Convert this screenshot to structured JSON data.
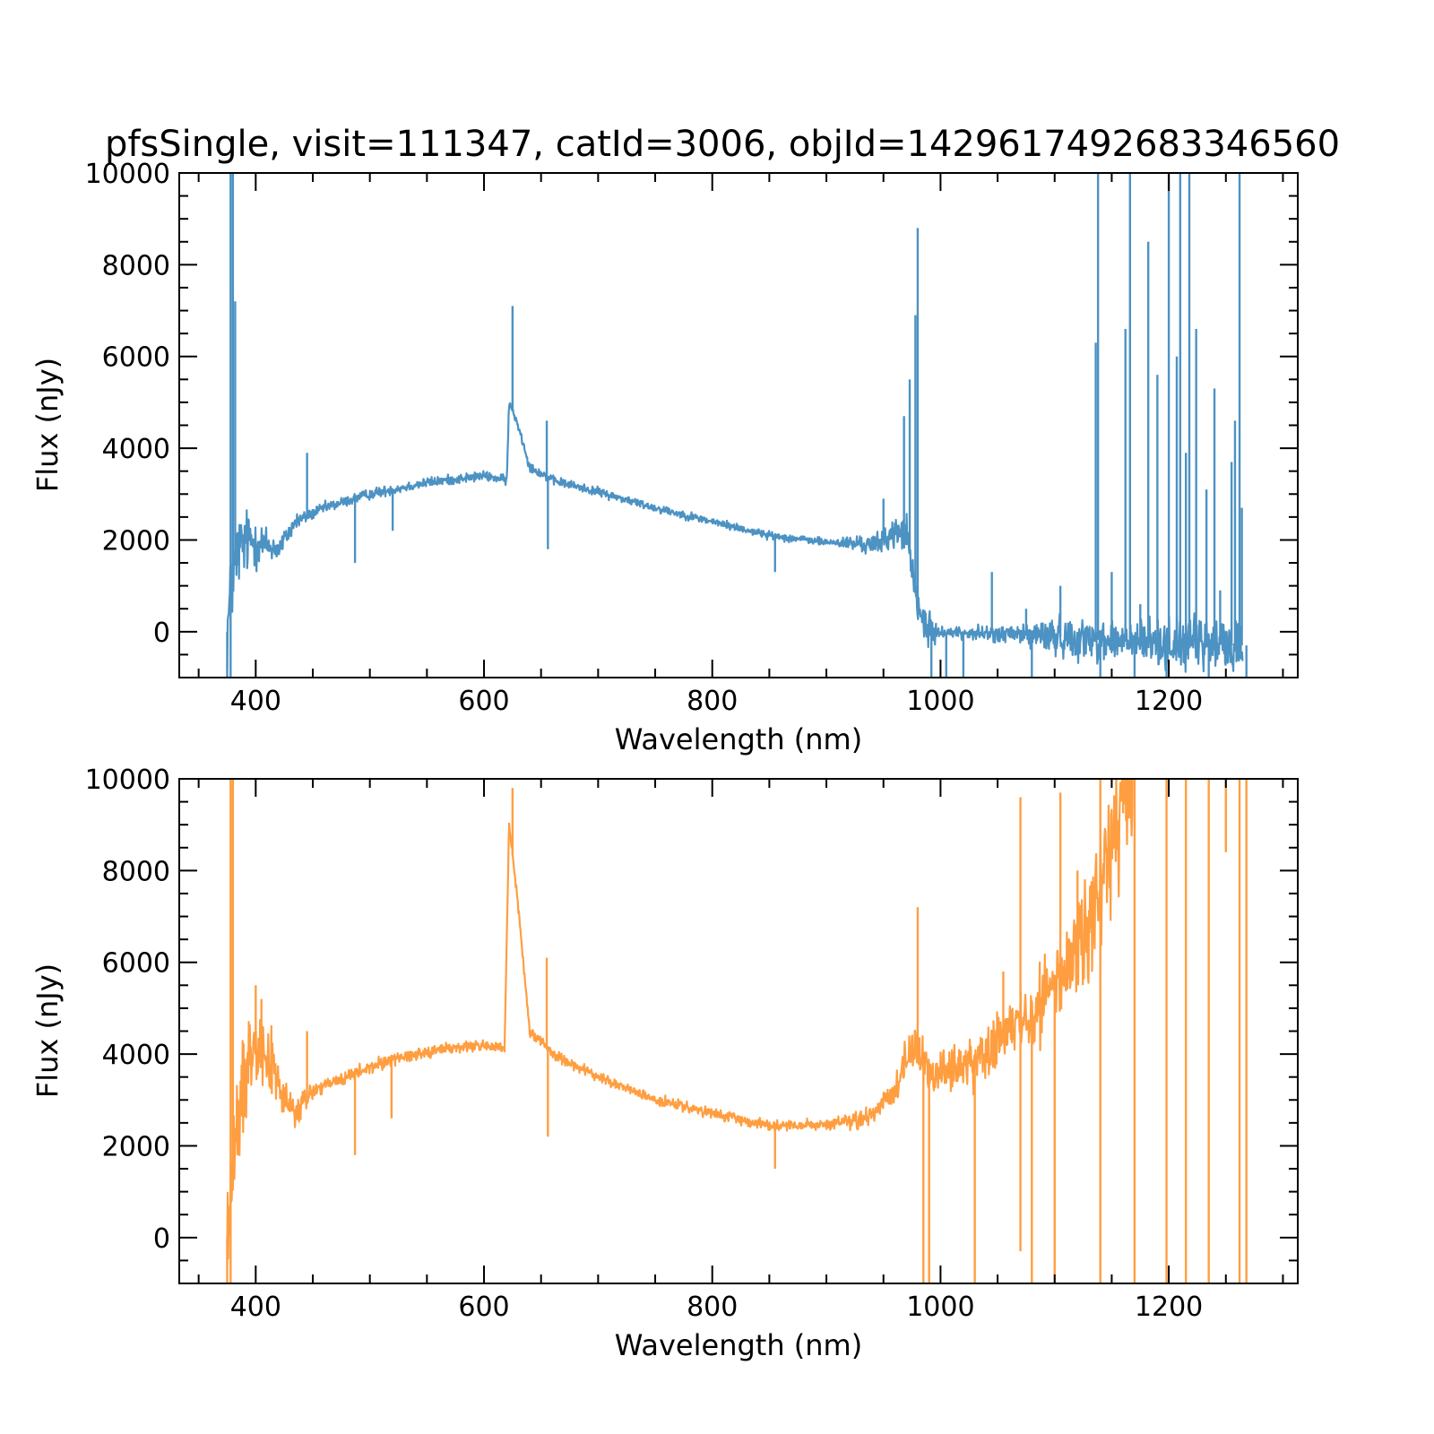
{
  "figure": {
    "title": "pfsSingle, visit=111347, catId=3006, objId=1429617492683346560"
  },
  "chart_data": [
    {
      "type": "line",
      "xlabel": "Wavelength (nm)",
      "ylabel": "Flux (nJy)",
      "xlim": [
        333,
        1313
      ],
      "ylim": [
        -1000,
        10000
      ],
      "xticks": [
        400,
        600,
        800,
        1000,
        1200
      ],
      "xtick_labels": [
        "400",
        "600",
        "800",
        "1000",
        "1200"
      ],
      "yticks": [
        0,
        2000,
        4000,
        6000,
        8000,
        10000
      ],
      "ytick_labels": [
        "0",
        "2000",
        "4000",
        "6000",
        "8000",
        "10000"
      ],
      "grid": false,
      "series": [
        {
          "color": "#4c92c3",
          "continuum": [
            [
              375,
              0
            ],
            [
              380,
              1200
            ],
            [
              385,
              1800
            ],
            [
              395,
              2000
            ],
            [
              420,
              1800
            ],
            [
              435,
              2400
            ],
            [
              460,
              2700
            ],
            [
              500,
              3000
            ],
            [
              550,
              3250
            ],
            [
              600,
              3400
            ],
            [
              620,
              3300
            ],
            [
              622,
              5000
            ],
            [
              630,
              4500
            ],
            [
              640,
              3600
            ],
            [
              660,
              3300
            ],
            [
              700,
              3050
            ],
            [
              750,
              2700
            ],
            [
              800,
              2400
            ],
            [
              850,
              2100
            ],
            [
              900,
              1950
            ],
            [
              945,
              1900
            ],
            [
              955,
              2100
            ],
            [
              970,
              2200
            ],
            [
              980,
              500
            ],
            [
              990,
              0
            ],
            [
              1050,
              -50
            ],
            [
              1100,
              -100
            ],
            [
              1150,
              -200
            ],
            [
              1200,
              -250
            ],
            [
              1265,
              -300
            ]
          ],
          "noise": [
            [
              380,
              900
            ],
            [
              420,
              250
            ],
            [
              450,
              120
            ],
            [
              600,
              100
            ],
            [
              900,
              80
            ],
            [
              950,
              250
            ],
            [
              985,
              500
            ],
            [
              1000,
              100
            ],
            [
              1060,
              200
            ],
            [
              1100,
              400
            ],
            [
              1265,
              600
            ]
          ],
          "spikes": [
            [
              378,
              10000
            ],
            [
              380,
              10000
            ],
            [
              382,
              7200
            ],
            [
              445,
              3900
            ],
            [
              487,
              1500
            ],
            [
              520,
              2200
            ],
            [
              625,
              7100
            ],
            [
              655,
              4600
            ],
            [
              656,
              1800
            ],
            [
              855,
              1300
            ],
            [
              950,
              2900
            ],
            [
              968,
              4700
            ],
            [
              973,
              5500
            ],
            [
              978,
              6900
            ],
            [
              980,
              8800
            ],
            [
              1045,
              1300
            ],
            [
              1075,
              500
            ],
            [
              1105,
              1000
            ],
            [
              1136,
              6300
            ],
            [
              1138,
              10000
            ],
            [
              1150,
              1300
            ],
            [
              1162,
              6600
            ],
            [
              1166,
              10000
            ],
            [
              1175,
              600
            ],
            [
              1182,
              8500
            ],
            [
              1190,
              5600
            ],
            [
              1200,
              10000
            ],
            [
              1207,
              6000
            ],
            [
              1210,
              10000
            ],
            [
              1215,
              3900
            ],
            [
              1218,
              10000
            ],
            [
              1224,
              6600
            ],
            [
              1233,
              3100
            ],
            [
              1240,
              5300
            ],
            [
              1245,
              900
            ],
            [
              1255,
              3700
            ],
            [
              1258,
              4600
            ],
            [
              1262,
              10000
            ],
            [
              1264,
              2700
            ]
          ],
          "dips": [
            [
              375,
              -1000
            ],
            [
              378,
              -1000
            ],
            [
              992,
              -1000
            ],
            [
              1005,
              -1000
            ],
            [
              1020,
              -1000
            ],
            [
              1080,
              -1000
            ],
            [
              1140,
              -1000
            ],
            [
              1170,
              -1000
            ],
            [
              1198,
              -1000
            ],
            [
              1235,
              -1000
            ],
            [
              1268,
              -1000
            ]
          ]
        }
      ]
    },
    {
      "type": "line",
      "xlabel": "Wavelength (nm)",
      "ylabel": "Flux (nJy)",
      "xlim": [
        333,
        1313
      ],
      "ylim": [
        -1000,
        10000
      ],
      "xticks": [
        400,
        600,
        800,
        1000,
        1200
      ],
      "xtick_labels": [
        "400",
        "600",
        "800",
        "1000",
        "1200"
      ],
      "yticks": [
        0,
        2000,
        4000,
        6000,
        8000,
        10000
      ],
      "ytick_labels": [
        "0",
        "2000",
        "4000",
        "6000",
        "8000",
        "10000"
      ],
      "grid": false,
      "series": [
        {
          "color": "#ff9e41",
          "continuum": [
            [
              375,
              0
            ],
            [
              380,
              1500
            ],
            [
              390,
              3500
            ],
            [
              400,
              4500
            ],
            [
              415,
              3700
            ],
            [
              425,
              3000
            ],
            [
              435,
              2700
            ],
            [
              450,
              3200
            ],
            [
              480,
              3500
            ],
            [
              520,
              3900
            ],
            [
              560,
              4100
            ],
            [
              600,
              4200
            ],
            [
              618,
              4100
            ],
            [
              622,
              9000
            ],
            [
              630,
              7200
            ],
            [
              640,
              4500
            ],
            [
              650,
              4300
            ],
            [
              660,
              4000
            ],
            [
              700,
              3500
            ],
            [
              750,
              3000
            ],
            [
              800,
              2700
            ],
            [
              850,
              2450
            ],
            [
              900,
              2450
            ],
            [
              935,
              2600
            ],
            [
              960,
              3200
            ],
            [
              978,
              4300
            ],
            [
              985,
              3700
            ],
            [
              1000,
              3600
            ],
            [
              1030,
              3800
            ],
            [
              1060,
              4500
            ],
            [
              1100,
              5500
            ],
            [
              1130,
              6800
            ],
            [
              1150,
              8500
            ],
            [
              1170,
              10000
            ]
          ],
          "noise": [
            [
              380,
              1200
            ],
            [
              430,
              400
            ],
            [
              460,
              150
            ],
            [
              600,
              120
            ],
            [
              900,
              100
            ],
            [
              950,
              250
            ],
            [
              985,
              500
            ],
            [
              1000,
              500
            ],
            [
              1060,
              600
            ],
            [
              1100,
              900
            ],
            [
              1160,
              1500
            ]
          ],
          "spikes": [
            [
              378,
              10000
            ],
            [
              380,
              10000
            ],
            [
              400,
              5500
            ],
            [
              405,
              5200
            ],
            [
              445,
              4500
            ],
            [
              487,
              1800
            ],
            [
              519,
              2600
            ],
            [
              625,
              9800
            ],
            [
              655,
              6100
            ],
            [
              656,
              2200
            ],
            [
              855,
              1500
            ],
            [
              968,
              3500
            ],
            [
              980,
              7200
            ],
            [
              1055,
              5800
            ],
            [
              1070,
              9600
            ],
            [
              1105,
              9700
            ],
            [
              1120,
              8000
            ],
            [
              1140,
              10000
            ],
            [
              1160,
              10000
            ],
            [
              1180,
              10000
            ],
            [
              1200,
              10000
            ],
            [
              1215,
              10000
            ],
            [
              1225,
              10000
            ],
            [
              1240,
              10000
            ],
            [
              1250,
              8400
            ],
            [
              1258,
              10000
            ],
            [
              1262,
              10000
            ]
          ],
          "dips": [
            [
              375,
              -1000
            ],
            [
              378,
              -1000
            ],
            [
              985,
              -1000
            ],
            [
              990,
              -1000
            ],
            [
              1030,
              -1000
            ],
            [
              1070,
              -300
            ],
            [
              1080,
              -1000
            ],
            [
              1100,
              -1000
            ],
            [
              1140,
              -1000
            ],
            [
              1170,
              -1000
            ],
            [
              1198,
              -1000
            ],
            [
              1215,
              -1000
            ],
            [
              1235,
              -1000
            ],
            [
              1262,
              -1000
            ],
            [
              1268,
              -1000
            ]
          ]
        }
      ]
    }
  ]
}
